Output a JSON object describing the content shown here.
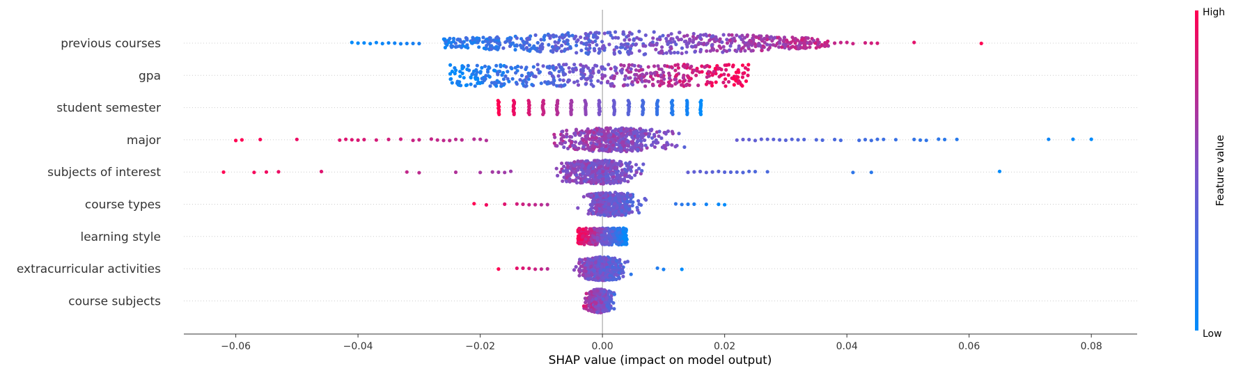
{
  "chart_data": {
    "type": "scatter",
    "subtype": "shap-beeswarm-summary",
    "title": "",
    "xlabel": "SHAP value (impact on model output)",
    "ylabel": "",
    "xlim": [
      -0.0685,
      0.0875
    ],
    "xticks": [
      -0.06,
      -0.04,
      -0.02,
      0.0,
      0.02,
      0.04,
      0.06,
      0.08
    ],
    "xtick_labels": [
      "−0.06",
      "−0.04",
      "−0.02",
      "0.00",
      "0.02",
      "0.04",
      "0.06",
      "0.08"
    ],
    "zero_line": 0.0,
    "grid": false,
    "colorbar": {
      "title": "Feature value",
      "high_label": "High",
      "low_label": "Low",
      "high_color": "#ff0052",
      "mid_color": "#7b53c9",
      "low_color": "#008bfb",
      "placement": "right"
    },
    "features": [
      {
        "name": "previous courses",
        "distribution": "wide",
        "range": [
          -0.041,
          0.062
        ],
        "core_range": [
          -0.026,
          0.037
        ],
        "direction": "high-positive",
        "outliers": [
          -0.041,
          -0.04,
          -0.039,
          -0.038,
          -0.037,
          -0.036,
          -0.035,
          -0.034,
          -0.033,
          -0.032,
          -0.031,
          -0.03,
          0.038,
          0.039,
          0.04,
          0.041,
          0.043,
          0.044,
          0.045,
          0.051,
          0.062
        ]
      },
      {
        "name": "gpa",
        "distribution": "uniform",
        "range": [
          -0.025,
          0.024
        ],
        "core_range": [
          -0.025,
          0.024
        ],
        "direction": "high-positive",
        "outliers": []
      },
      {
        "name": "student semester",
        "distribution": "discrete",
        "range": [
          -0.017,
          0.016
        ],
        "levels": [
          -0.017,
          -0.0145,
          -0.012,
          -0.0097,
          -0.0074,
          -0.0051,
          -0.0028,
          -0.0005,
          0.0019,
          0.0043,
          0.0066,
          0.009,
          0.0114,
          0.0138,
          0.0161
        ],
        "direction": "high-negative",
        "outliers": []
      },
      {
        "name": "major",
        "distribution": "sparse-wide",
        "range": [
          -0.06,
          0.08
        ],
        "core_range": [
          -0.017,
          0.021
        ],
        "direction": "high-negative",
        "outliers": [
          -0.06,
          -0.059,
          -0.056,
          -0.05,
          -0.043,
          -0.042,
          -0.041,
          -0.04,
          -0.039,
          -0.037,
          -0.035,
          -0.033,
          -0.031,
          -0.03,
          -0.028,
          -0.027,
          -0.026,
          -0.025,
          -0.024,
          -0.023,
          -0.021,
          -0.02,
          -0.019,
          0.022,
          0.023,
          0.024,
          0.025,
          0.026,
          0.027,
          0.028,
          0.029,
          0.03,
          0.031,
          0.032,
          0.033,
          0.035,
          0.036,
          0.038,
          0.039,
          0.042,
          0.043,
          0.044,
          0.045,
          0.046,
          0.048,
          0.051,
          0.052,
          0.053,
          0.055,
          0.056,
          0.058,
          0.073,
          0.077,
          0.08
        ]
      },
      {
        "name": "subjects of interest",
        "distribution": "bell",
        "range": [
          -0.062,
          0.065
        ],
        "core_range": [
          -0.014,
          0.013
        ],
        "direction": "high-negative",
        "outliers": [
          -0.062,
          -0.057,
          -0.055,
          -0.053,
          -0.046,
          -0.032,
          -0.03,
          -0.024,
          -0.02,
          -0.018,
          -0.017,
          -0.016,
          -0.015,
          0.014,
          0.015,
          0.016,
          0.017,
          0.018,
          0.019,
          0.02,
          0.021,
          0.022,
          0.023,
          0.024,
          0.025,
          0.027,
          0.041,
          0.044,
          0.065
        ]
      },
      {
        "name": "course types",
        "distribution": "bell",
        "range": [
          -0.021,
          0.02
        ],
        "core_range": [
          -0.008,
          0.011
        ],
        "direction": "high-negative",
        "outliers": [
          -0.021,
          -0.019,
          -0.016,
          -0.014,
          -0.013,
          -0.012,
          -0.011,
          -0.01,
          -0.009,
          0.012,
          0.013,
          0.014,
          0.015,
          0.017,
          0.019,
          0.02
        ]
      },
      {
        "name": "learning style",
        "distribution": "block",
        "range": [
          -0.004,
          0.004
        ],
        "core_range": [
          -0.004,
          0.004
        ],
        "direction": "high-negative",
        "outliers": []
      },
      {
        "name": "extracurricular activities",
        "distribution": "bell",
        "range": [
          -0.017,
          0.013
        ],
        "core_range": [
          -0.008,
          0.008
        ],
        "direction": "high-negative",
        "outliers": [
          -0.017,
          -0.014,
          -0.013,
          -0.012,
          -0.011,
          -0.01,
          -0.009,
          0.009,
          0.01,
          0.013
        ]
      },
      {
        "name": "course subjects",
        "distribution": "bell",
        "range": [
          -0.006,
          0.006
        ],
        "core_range": [
          -0.005,
          0.004
        ],
        "direction": "high-negative",
        "outliers": []
      }
    ]
  }
}
